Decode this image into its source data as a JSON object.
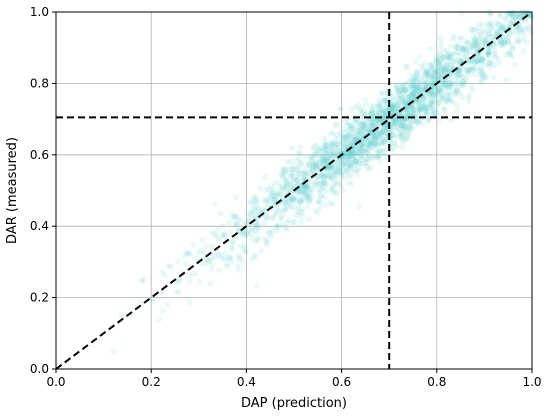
{
  "chart_data": {
    "type": "scatter",
    "title": "",
    "xlabel": "DAP (prediction)",
    "ylabel": "DAR (measured)",
    "xlim": [
      0.0,
      1.0
    ],
    "ylim": [
      0.0,
      1.0
    ],
    "xticks": [
      "0.0",
      "0.2",
      "0.4",
      "0.6",
      "0.8",
      "1.0"
    ],
    "yticks": [
      "0.0",
      "0.2",
      "0.4",
      "0.6",
      "0.8",
      "1.0"
    ],
    "grid": true,
    "legend": "none",
    "series": [
      {
        "point_color": "#5ad1d1",
        "point_opacity": 0.12,
        "approx_point_count": 2200,
        "relationship": "y ≈ x with scatter std ≈ 0.04, clipped to 1.0",
        "x_range_observed": [
          0.12,
          1.0
        ],
        "x_density_center": 0.7,
        "x_density_spread": 0.18
      }
    ],
    "reference_lines": [
      {
        "kind": "diagonal",
        "from": [
          0.0,
          0.0
        ],
        "to": [
          1.0,
          1.0
        ],
        "style": "dashed",
        "color": "#000000"
      },
      {
        "kind": "vertical",
        "x": 0.7,
        "style": "dashed",
        "color": "#000000"
      },
      {
        "kind": "horizontal",
        "y": 0.705,
        "style": "dashed",
        "color": "#000000"
      }
    ]
  }
}
